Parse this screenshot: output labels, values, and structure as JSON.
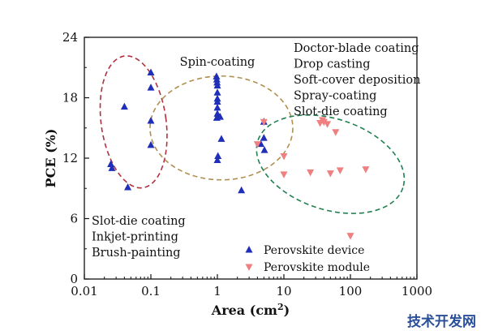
{
  "chart_data": {
    "type": "scatter",
    "x_scale": "log",
    "xlim": [
      0.01,
      1000
    ],
    "ylim": [
      0,
      24
    ],
    "xlabel": "Area (cm",
    "xlabel_sup": "2",
    "xlabel_close": ")",
    "ylabel": "PCE (%)",
    "x_ticks": [
      0.01,
      0.1,
      1,
      10,
      100,
      1000
    ],
    "x_tick_labels": [
      "0.01",
      "0.1",
      "1",
      "10",
      "100",
      "1000"
    ],
    "y_ticks": [
      0,
      6,
      12,
      18,
      24
    ],
    "y_tick_labels": [
      "0",
      "6",
      "12",
      "18",
      "24"
    ],
    "grid": false,
    "legend_position": "bottom-center",
    "series": [
      {
        "name": "Perovskite device",
        "marker": "triangle-up",
        "color": "#1f2fb8",
        "points": [
          [
            0.025,
            11.4
          ],
          [
            0.026,
            11.0
          ],
          [
            0.04,
            17.1
          ],
          [
            0.045,
            9.1
          ],
          [
            0.1,
            20.5
          ],
          [
            0.1,
            19.0
          ],
          [
            0.1,
            15.7
          ],
          [
            0.1,
            13.3
          ],
          [
            0.97,
            20.1
          ],
          [
            0.98,
            19.8
          ],
          [
            0.99,
            19.5
          ],
          [
            1.0,
            19.2
          ],
          [
            1.0,
            18.5
          ],
          [
            1.0,
            17.9
          ],
          [
            1.0,
            17.6
          ],
          [
            1.0,
            17.0
          ],
          [
            1.0,
            16.4
          ],
          [
            0.98,
            16.0
          ],
          [
            1.02,
            12.2
          ],
          [
            1.0,
            11.8
          ],
          [
            1.1,
            16.1
          ],
          [
            1.15,
            13.9
          ],
          [
            2.3,
            8.8
          ],
          [
            4.5,
            13.4
          ],
          [
            5.0,
            15.6
          ],
          [
            5.0,
            14.0
          ],
          [
            5.1,
            12.8
          ]
        ]
      },
      {
        "name": "Perovskite module",
        "marker": "triangle-down",
        "color": "#f08080",
        "points": [
          [
            4.0,
            13.4
          ],
          [
            5.0,
            15.6
          ],
          [
            10,
            12.2
          ],
          [
            10,
            10.4
          ],
          [
            25,
            10.6
          ],
          [
            35,
            15.5
          ],
          [
            38,
            15.8
          ],
          [
            40,
            15.6
          ],
          [
            45,
            15.4
          ],
          [
            50,
            10.5
          ],
          [
            60,
            14.6
          ],
          [
            70,
            10.8
          ],
          [
            100,
            4.3
          ],
          [
            170,
            10.9
          ]
        ]
      }
    ],
    "ellipses": [
      {
        "color": "#b03040",
        "cx": 0.055,
        "cy": 15.6,
        "rx_px": 40,
        "ry_px": 82,
        "rotate": -8
      },
      {
        "color": "#b09050",
        "cx": 1.15,
        "cy": 15.0,
        "rx_px": 88,
        "ry_px": 64,
        "rotate": 0
      },
      {
        "color": "#208050",
        "cx": 50,
        "cy": 11.4,
        "rx_px": 94,
        "ry_px": 56,
        "rotate": 18
      }
    ],
    "annotations": [
      {
        "id": "spin",
        "lines": [
          "Spin-coating"
        ]
      },
      {
        "id": "right",
        "lines": [
          "Doctor-blade coating",
          "Drop casting",
          "Soft-cover deposition",
          "Spray-coating",
          "Slot-die coating"
        ]
      },
      {
        "id": "left",
        "lines": [
          "Slot-die coating",
          "Inkjet-printing",
          "Brush-painting"
        ]
      }
    ]
  },
  "watermark": "技术开发网"
}
